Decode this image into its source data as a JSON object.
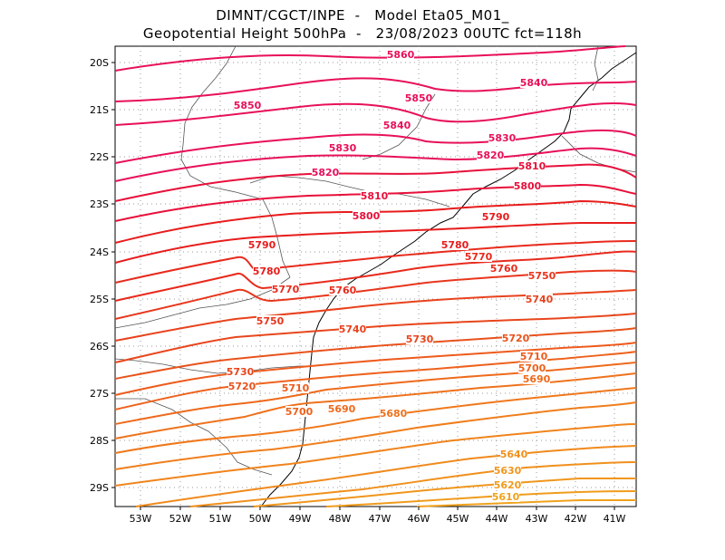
{
  "title": {
    "line1": "DIMNT/CGCT/INPE  -   Model Eta05_M01_",
    "line2": "Geopotential Height 500hPa  -   23/08/2023 00UTC fct=118h"
  },
  "axes": {
    "lat_ticks": [
      "20S",
      "21S",
      "22S",
      "23S",
      "24S",
      "25S",
      "26S",
      "27S",
      "28S",
      "29S"
    ],
    "lon_ticks": [
      "53W",
      "52W",
      "51W",
      "50W",
      "49W",
      "48W",
      "47W",
      "46W",
      "45W",
      "44W",
      "43W",
      "42W",
      "41W"
    ]
  },
  "contour_labels": [
    {
      "text": "5860",
      "color": "#e8105a"
    },
    {
      "text": "5850",
      "color": "#e8105a"
    },
    {
      "text": "5850",
      "color": "#e8105a"
    },
    {
      "text": "5840",
      "color": "#e8105a"
    },
    {
      "text": "5840",
      "color": "#e8105a"
    },
    {
      "text": "5830",
      "color": "#e8105a"
    },
    {
      "text": "5830",
      "color": "#e8105a"
    },
    {
      "text": "5820",
      "color": "#e8105a"
    },
    {
      "text": "5820",
      "color": "#e8105a"
    },
    {
      "text": "5810",
      "color": "#e8103a"
    },
    {
      "text": "5810",
      "color": "#e8103a"
    },
    {
      "text": "5800",
      "color": "#e8103a"
    },
    {
      "text": "5800",
      "color": "#e8103a"
    },
    {
      "text": "5790",
      "color": "#e81c1c"
    },
    {
      "text": "5790",
      "color": "#e81c1c"
    },
    {
      "text": "5780",
      "color": "#e81c1c"
    },
    {
      "text": "5780",
      "color": "#e81c1c"
    },
    {
      "text": "5770",
      "color": "#e82a1c"
    },
    {
      "text": "5770",
      "color": "#e82a1c"
    },
    {
      "text": "5760",
      "color": "#e82a1c"
    },
    {
      "text": "5760",
      "color": "#e82a1c"
    },
    {
      "text": "5750",
      "color": "#e8361c"
    },
    {
      "text": "5750",
      "color": "#e8361c"
    },
    {
      "text": "5740",
      "color": "#e8421c"
    },
    {
      "text": "5740",
      "color": "#e8421c"
    },
    {
      "text": "5730",
      "color": "#e8461c"
    },
    {
      "text": "5730",
      "color": "#e8461c"
    },
    {
      "text": "5720",
      "color": "#e8521c"
    },
    {
      "text": "5720",
      "color": "#e8521c"
    },
    {
      "text": "5710",
      "color": "#ee5a1c"
    },
    {
      "text": "5710",
      "color": "#ee5a1c"
    },
    {
      "text": "5700",
      "color": "#ee621c"
    },
    {
      "text": "5700",
      "color": "#ee621c"
    },
    {
      "text": "5690",
      "color": "#ee6a1c"
    },
    {
      "text": "5690",
      "color": "#ee6a1c"
    },
    {
      "text": "5680",
      "color": "#ee721c"
    },
    {
      "text": "5640",
      "color": "#f0901c"
    },
    {
      "text": "5630",
      "color": "#f0961c"
    },
    {
      "text": "5620",
      "color": "#f09c1c"
    },
    {
      "text": "5610",
      "color": "#f0a21c"
    }
  ],
  "colors": {
    "frame": "#000000",
    "grid": "#9a9a9a",
    "coast": "#000000",
    "border": "#555555"
  }
}
